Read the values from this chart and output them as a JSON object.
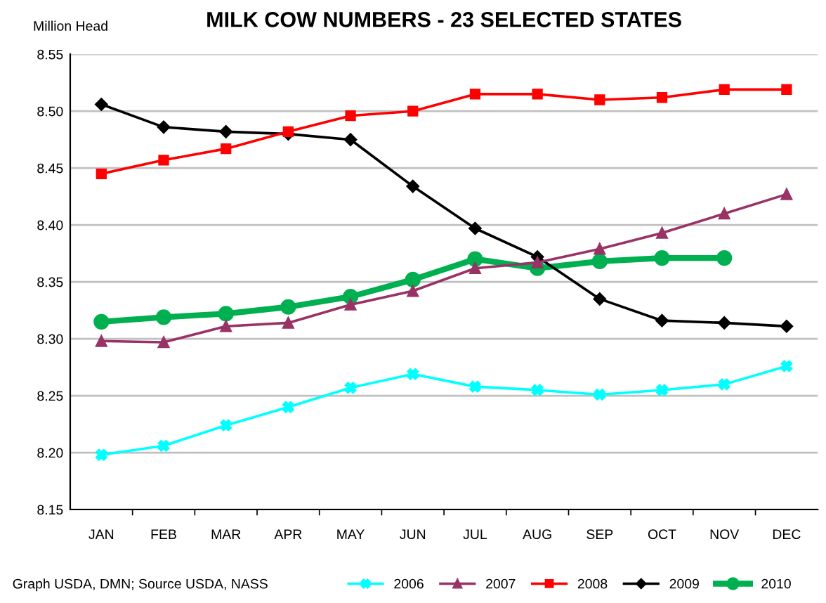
{
  "chart_data": {
    "type": "line",
    "title": "MILK COW NUMBERS - 23 SELECTED STATES",
    "ylabel": "Million Head",
    "categories": [
      "JAN",
      "FEB",
      "MAR",
      "APR",
      "MAY",
      "JUN",
      "JUL",
      "AUG",
      "SEP",
      "OCT",
      "NOV",
      "DEC"
    ],
    "series": [
      {
        "name": "2006",
        "color": "#00ffff",
        "marker": "cross",
        "values": [
          8.198,
          8.206,
          8.224,
          8.24,
          8.257,
          8.269,
          8.258,
          8.255,
          8.251,
          8.255,
          8.26,
          8.276
        ]
      },
      {
        "name": "2007",
        "color": "#993366",
        "marker": "triangle",
        "values": [
          8.298,
          8.297,
          8.311,
          8.314,
          8.33,
          8.342,
          8.362,
          8.367,
          8.379,
          8.393,
          8.41,
          8.427
        ]
      },
      {
        "name": "2008",
        "color": "#ff0000",
        "marker": "square",
        "values": [
          8.445,
          8.457,
          8.467,
          8.482,
          8.496,
          8.5,
          8.515,
          8.515,
          8.51,
          8.512,
          8.519,
          8.519
        ]
      },
      {
        "name": "2009",
        "color": "#000000",
        "marker": "diamond",
        "values": [
          8.506,
          8.486,
          8.482,
          8.48,
          8.475,
          8.434,
          8.397,
          8.372,
          8.335,
          8.316,
          8.314,
          8.311
        ]
      },
      {
        "name": "2010",
        "color": "#00b050",
        "marker": "circle",
        "values": [
          8.315,
          8.319,
          8.322,
          8.328,
          8.337,
          8.352,
          8.37,
          8.362,
          8.368,
          8.371,
          8.371,
          null
        ]
      }
    ],
    "ylim": [
      8.15,
      8.55
    ],
    "yticks": [
      8.15,
      {
        "value": 8.2,
        "label": "8.20"
      },
      8.25,
      {
        "value": 8.3,
        "label": "8.30"
      },
      8.35,
      {
        "value": 8.4,
        "label": "8.40"
      },
      8.45,
      {
        "value": 8.5,
        "label": "8.50"
      },
      8.55
    ],
    "grid": "y",
    "legend": "bottom",
    "annotations": [
      "Graph USDA, DMN; Source USDA, NASS"
    ]
  }
}
